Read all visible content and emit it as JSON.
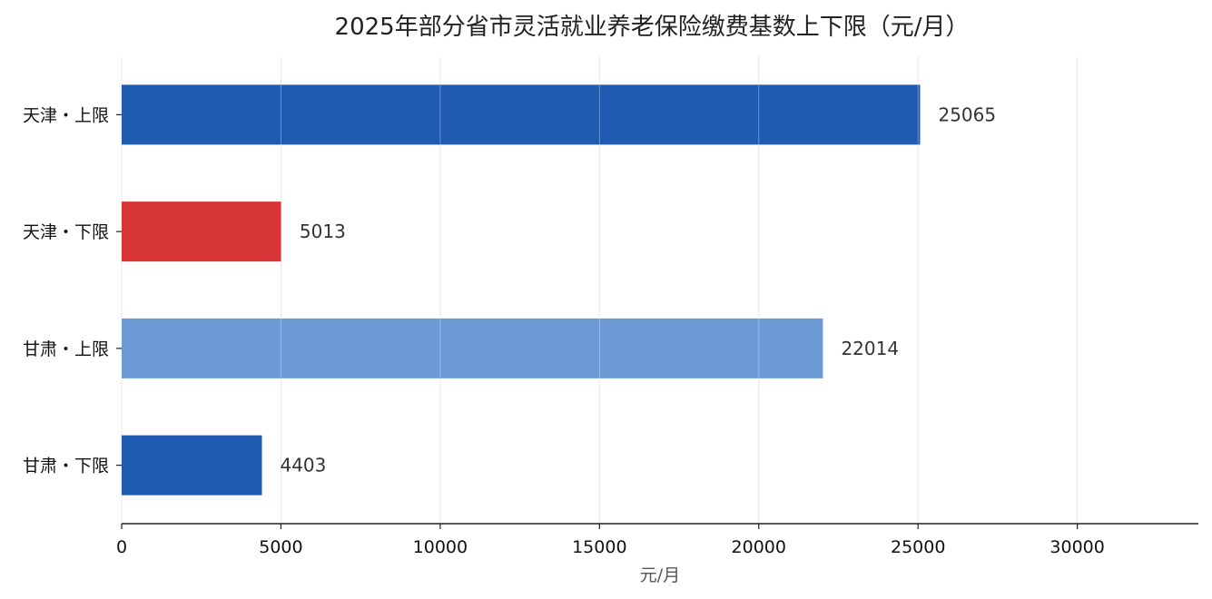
{
  "chart_data": {
    "type": "bar",
    "orientation": "horizontal",
    "title": "2025年部分省市灵活就业养老保险缴费基数上下限（元/月）",
    "xlabel": "元/月",
    "ylabel": "",
    "categories": [
      "天津・上限",
      "天津・下限",
      "甘肃・上限",
      "甘肃・下限"
    ],
    "values": [
      25065,
      5013,
      22014,
      4403
    ],
    "bar_colors": [
      "#1f5bb0",
      "#d73535",
      "#6b9ad4",
      "#1f5bb0"
    ],
    "xlim": [
      0,
      33800
    ],
    "xticks": [
      0,
      5000,
      10000,
      15000,
      20000,
      25000,
      30000
    ],
    "vertical_grid": true,
    "legend": "none"
  }
}
